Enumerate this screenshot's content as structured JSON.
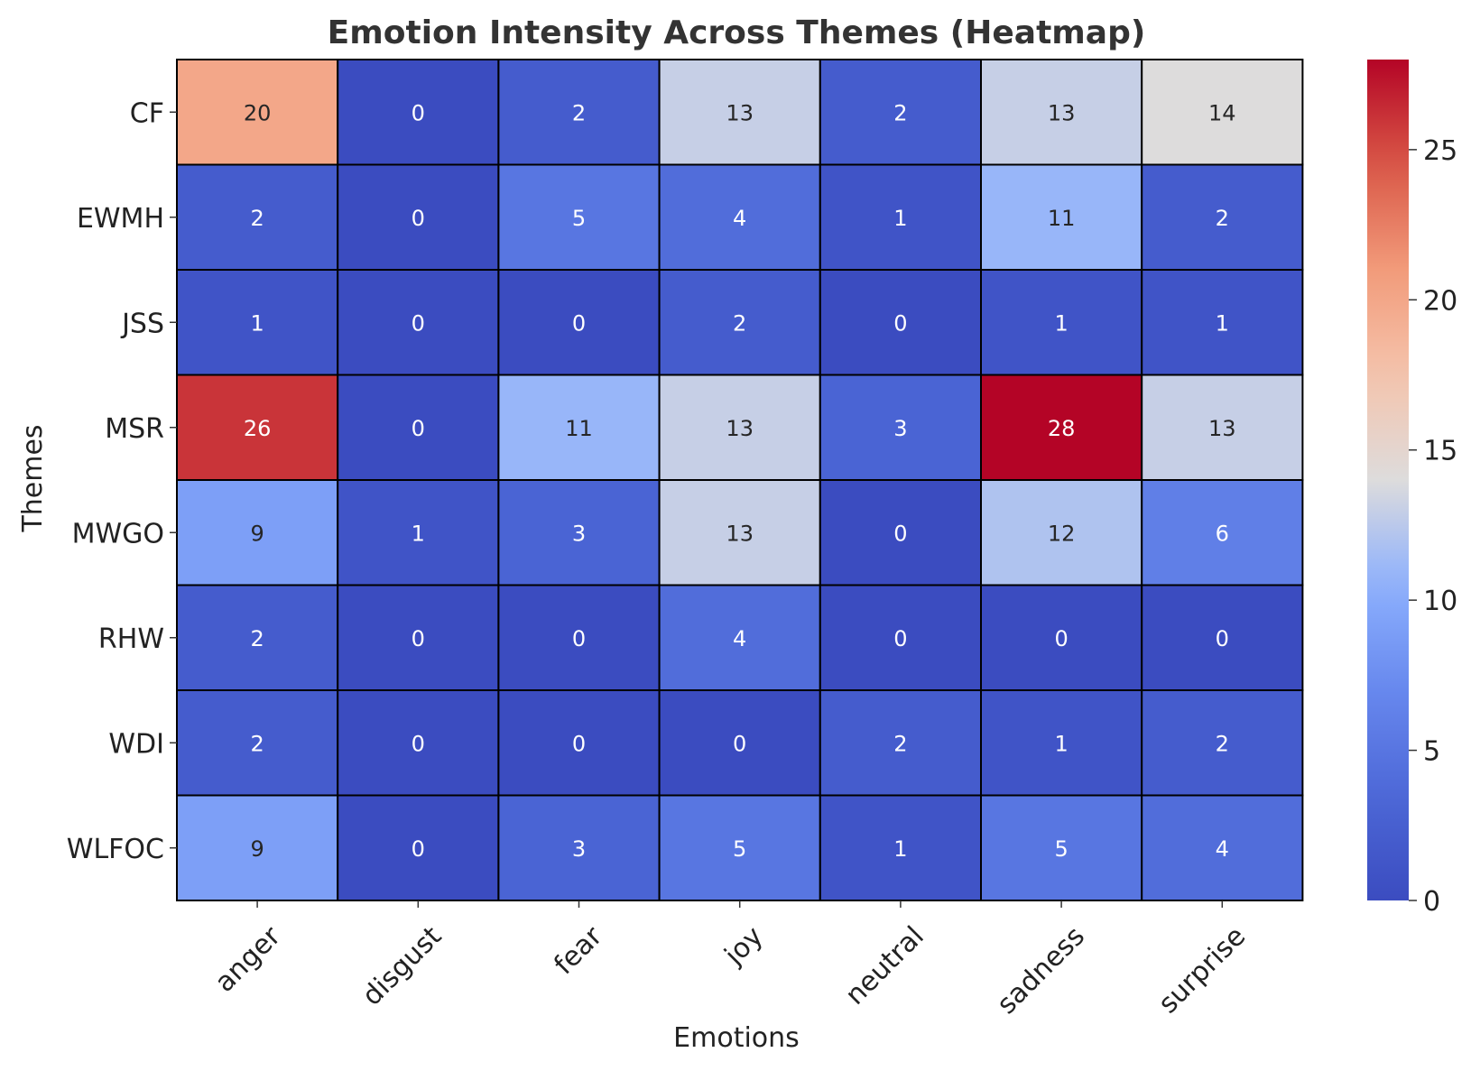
{
  "chart_data": {
    "type": "heatmap",
    "title": "Emotion Intensity Across Themes (Heatmap)",
    "xlabel": "Emotions",
    "ylabel": "Themes",
    "x_categories": [
      "anger",
      "disgust",
      "fear",
      "joy",
      "neutral",
      "sadness",
      "surprise"
    ],
    "y_categories": [
      "CF",
      "EWMH",
      "JSS",
      "MSR",
      "MWGO",
      "RHW",
      "WDI",
      "WLFOC"
    ],
    "values": [
      [
        20,
        0,
        2,
        13,
        2,
        13,
        14
      ],
      [
        2,
        0,
        5,
        4,
        1,
        11,
        2
      ],
      [
        1,
        0,
        0,
        2,
        0,
        1,
        1
      ],
      [
        26,
        0,
        11,
        13,
        3,
        28,
        13
      ],
      [
        9,
        1,
        3,
        13,
        0,
        12,
        6
      ],
      [
        2,
        0,
        0,
        4,
        0,
        0,
        0
      ],
      [
        2,
        0,
        0,
        0,
        2,
        1,
        2
      ],
      [
        9,
        0,
        3,
        5,
        1,
        5,
        4
      ]
    ],
    "colormap": "coolwarm",
    "vmin": 0,
    "vmax": 28,
    "colorbar_ticks": [
      0,
      5,
      10,
      15,
      20,
      25
    ],
    "annotated": true
  }
}
